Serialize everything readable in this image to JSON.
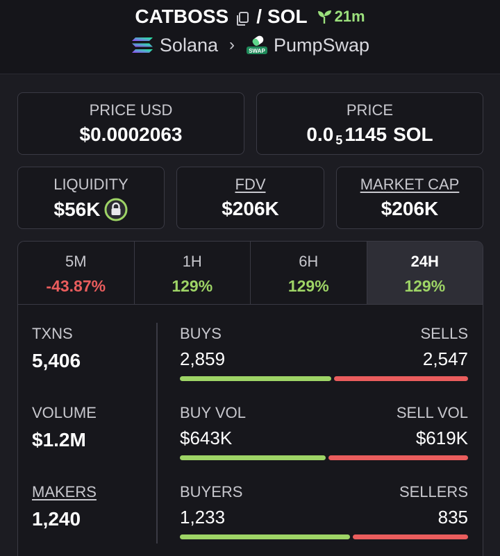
{
  "header": {
    "base": "CATBOSS",
    "separator": "/",
    "quote": "SOL",
    "age": "21m",
    "chain": "Solana",
    "dex": "PumpSwap",
    "dex_badge": "SWAP",
    "icons": [
      "copy-icon",
      "seedling-icon",
      "solana-logo-icon",
      "chevron-right-icon",
      "pumpswap-logo-icon"
    ]
  },
  "price_usd": {
    "label": "PRICE USD",
    "value": "$0.0002063"
  },
  "price": {
    "label": "PRICE",
    "prefix": "0.0",
    "zeros": "5",
    "digits": "1145",
    "unit": "SOL"
  },
  "liquidity": {
    "label": "LIQUIDITY",
    "value": "$56K",
    "icon": "lock-icon"
  },
  "fdv": {
    "label": "FDV",
    "value": "$206K"
  },
  "market_cap": {
    "label": "MARKET CAP",
    "value": "$206K"
  },
  "tabs": [
    {
      "label": "5M",
      "value": "-43.87%"
    },
    {
      "label": "1H",
      "value": "129%"
    },
    {
      "label": "6H",
      "value": "129%"
    },
    {
      "label": "24H",
      "value": "129%"
    }
  ],
  "stats": {
    "txns": {
      "label": "TXNS",
      "value": "5,406"
    },
    "volume": {
      "label": "VOLUME",
      "value": "$1.2M"
    },
    "makers": {
      "label": "MAKERS",
      "value": "1,240"
    }
  },
  "bars": {
    "txns": {
      "left_label": "BUYS",
      "right_label": "SELLS",
      "left_value": "2,859",
      "right_value": "2,547",
      "left_fraction": 0.529
    },
    "volume": {
      "left_label": "BUY VOL",
      "right_label": "SELL VOL",
      "left_value": "$643K",
      "right_value": "$619K",
      "left_fraction": 0.51
    },
    "makers": {
      "left_label": "BUYERS",
      "right_label": "SELLERS",
      "left_value": "1,233",
      "right_value": "835",
      "left_fraction": 0.596
    }
  },
  "colors": {
    "positive": "#9ed466",
    "negative": "#ea5d5d",
    "age": "#9ce07d",
    "lock": "#9ed466"
  }
}
